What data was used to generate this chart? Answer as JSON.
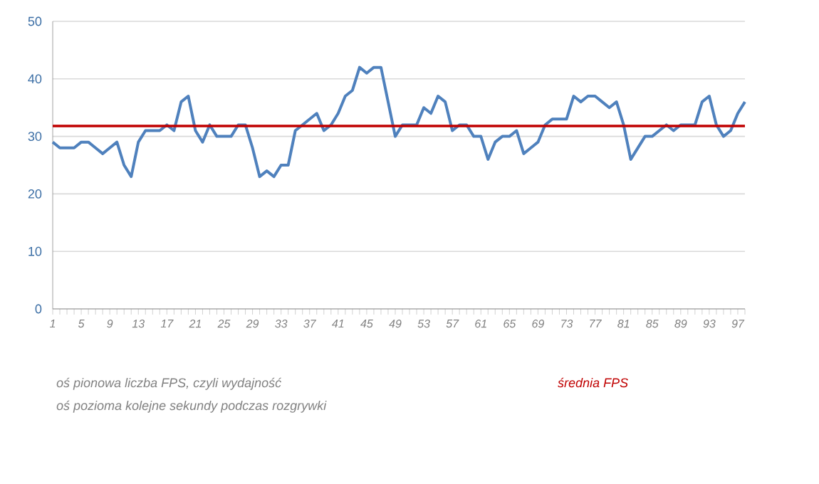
{
  "chart_data": {
    "type": "line",
    "categories": [
      "1",
      null,
      null,
      null,
      "5",
      null,
      null,
      null,
      "9",
      null,
      null,
      null,
      "13",
      null,
      null,
      null,
      "17",
      null,
      null,
      null,
      "21",
      null,
      null,
      null,
      "25",
      null,
      null,
      null,
      "29",
      null,
      null,
      null,
      "33",
      null,
      null,
      null,
      "37",
      null,
      null,
      null,
      "41",
      null,
      null,
      null,
      "45",
      null,
      null,
      null,
      "49",
      null,
      null,
      null,
      "53",
      null,
      null,
      null,
      "57",
      null,
      null,
      null,
      "61",
      null,
      null,
      null,
      "65",
      null,
      null,
      null,
      "69",
      null,
      null,
      null,
      "73",
      null,
      null,
      null,
      "77",
      null,
      null,
      null,
      "81",
      null,
      null,
      null,
      "85",
      null,
      null,
      null,
      "89",
      null,
      null,
      null,
      "93",
      null,
      null,
      null,
      "97",
      null
    ],
    "series": [
      {
        "color": "#4f81bd",
        "values": [
          29,
          28,
          28,
          28,
          29,
          29,
          28,
          27,
          28,
          29,
          25,
          23,
          29,
          31,
          31,
          31,
          32,
          31,
          36,
          37,
          31,
          29,
          32,
          30,
          30,
          30,
          32,
          32,
          28,
          23,
          24,
          23,
          25,
          25,
          31,
          32,
          33,
          34,
          31,
          32,
          34,
          37,
          38,
          42,
          41,
          42,
          42,
          36,
          30,
          32,
          32,
          32,
          35,
          34,
          37,
          36,
          31,
          32,
          32,
          30,
          30,
          26,
          29,
          30,
          30,
          31,
          27,
          28,
          29,
          32,
          33,
          33,
          33,
          37,
          36,
          37,
          37,
          36,
          35,
          36,
          32,
          26,
          28,
          30,
          30,
          31,
          32,
          31,
          32,
          32,
          32,
          36,
          37,
          32,
          30,
          31,
          34,
          36
        ]
      }
    ],
    "ylim": [
      0,
      50
    ],
    "yticks": [
      0,
      10,
      20,
      30,
      40,
      50
    ],
    "grid": "y",
    "marker": "none",
    "line_style": "solid",
    "ref_lines": [
      {
        "axis": "y",
        "value": 31.8,
        "label": "średnia FPS",
        "color": "#c00000"
      }
    ],
    "annotations": [
      "oś pionowa liczba FPS, czyli wydajność",
      "oś pozioma kolejne sekundy podczas rozgrywki"
    ]
  }
}
